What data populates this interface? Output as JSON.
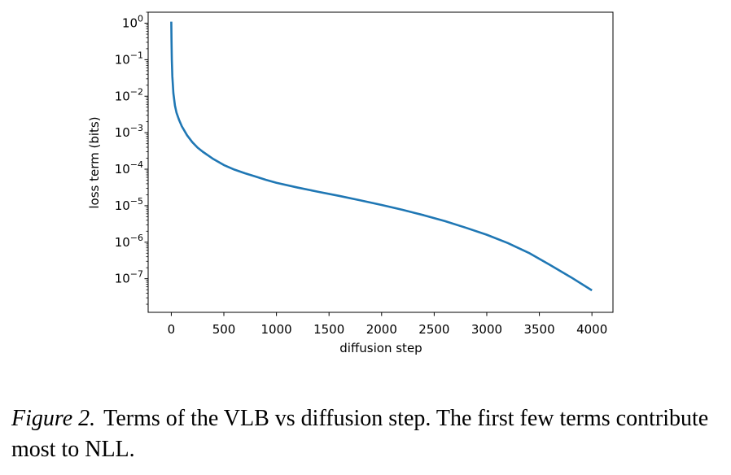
{
  "chart_data": {
    "type": "line",
    "title": "",
    "xlabel": "diffusion step",
    "ylabel": "loss term (bits)",
    "xlim": [
      -220,
      4200
    ],
    "ylim": [
      1.2e-08,
      2.0
    ],
    "yscale": "log",
    "x_ticks": [
      0,
      500,
      1000,
      1500,
      2000,
      2500,
      3000,
      3500,
      4000
    ],
    "x_tick_labels": [
      "0",
      "500",
      "1000",
      "1500",
      "2000",
      "2500",
      "3000",
      "3500",
      "4000"
    ],
    "y_ticks": [
      {
        "base": "10",
        "exp": "0"
      },
      {
        "base": "10",
        "exp": "−1"
      },
      {
        "base": "10",
        "exp": "−2"
      },
      {
        "base": "10",
        "exp": "−3"
      },
      {
        "base": "10",
        "exp": "−4"
      },
      {
        "base": "10",
        "exp": "−5"
      },
      {
        "base": "10",
        "exp": "−6"
      },
      {
        "base": "10",
        "exp": "−7"
      }
    ],
    "series": [
      {
        "name": "loss term",
        "color": "#1f77b4",
        "x": [
          0,
          2,
          5,
          10,
          20,
          35,
          50,
          75,
          100,
          150,
          200,
          250,
          300,
          400,
          500,
          600,
          700,
          800,
          900,
          1000,
          1200,
          1400,
          1600,
          1800,
          2000,
          2200,
          2400,
          2600,
          2800,
          3000,
          3200,
          3400,
          3600,
          3800,
          4000
        ],
        "y": [
          1.1,
          0.35,
          0.1,
          0.035,
          0.012,
          0.0055,
          0.0035,
          0.0022,
          0.0015,
          0.00085,
          0.00055,
          0.00039,
          0.0003,
          0.00019,
          0.00013,
          9.75e-05,
          7.75e-05,
          6.3e-05,
          5.1e-05,
          4.25e-05,
          3.15e-05,
          2.4e-05,
          1.85e-05,
          1.4e-05,
          1.05e-05,
          7.7e-06,
          5.5e-06,
          3.8e-06,
          2.5e-06,
          1.6e-06,
          9.5e-07,
          5.1e-07,
          2.4e-07,
          1.1e-07,
          4.8e-08
        ]
      }
    ]
  },
  "caption": {
    "figure_label": "Figure 2.",
    "text": "Terms of the VLB vs diffusion step. The first few terms contribute most to NLL."
  }
}
